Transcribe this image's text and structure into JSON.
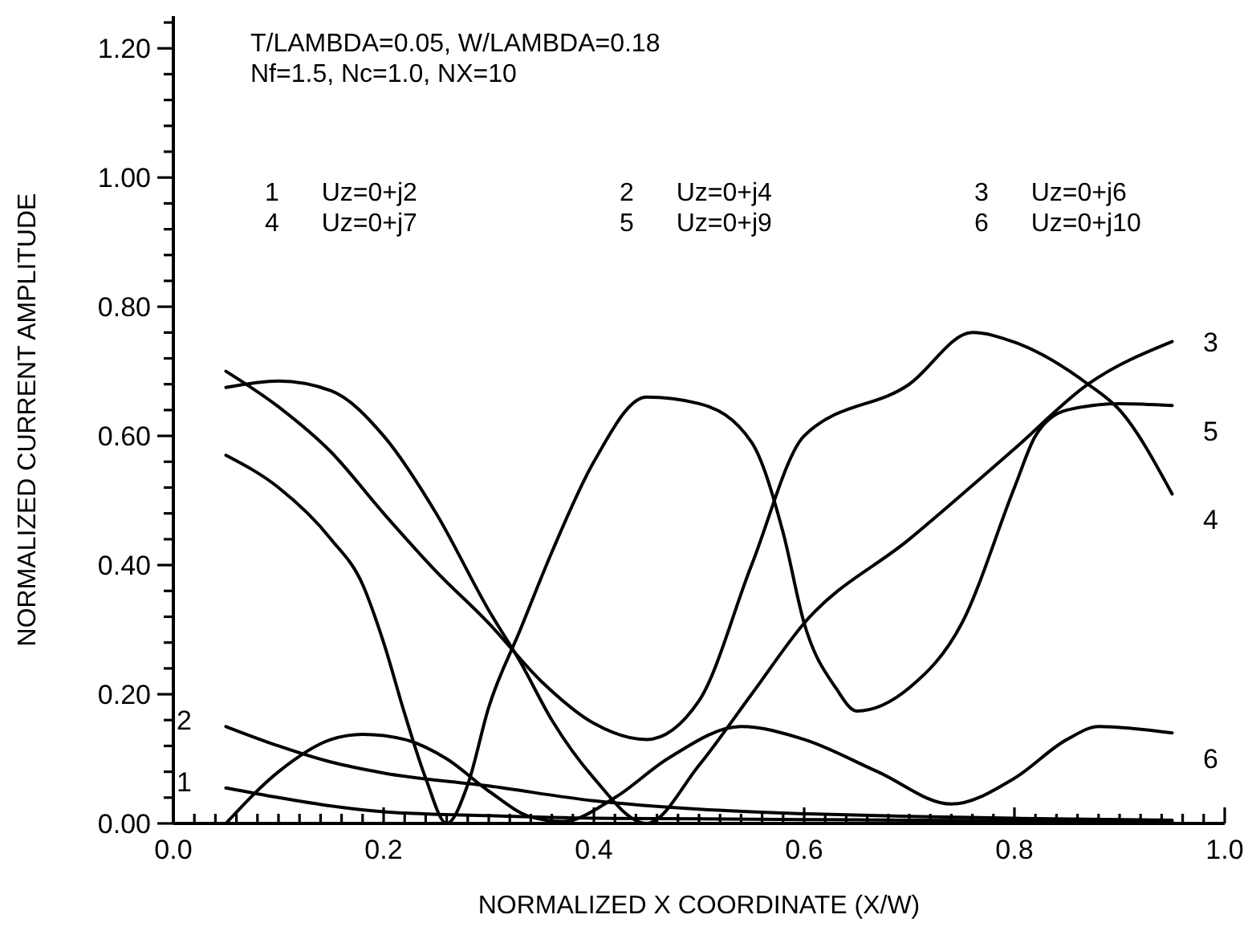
{
  "chart_data": {
    "type": "line",
    "xlabel": "NORMALIZED X COORDINATE (X/W)",
    "ylabel": "NORMALIZED CURRENT AMPLITUDE",
    "xlim": [
      0,
      1
    ],
    "ylim": [
      0,
      1.25
    ],
    "xticks": [
      {
        "value": 0,
        "label": "0.0"
      },
      {
        "value": 0.02,
        "label": null
      },
      {
        "value": 0.04,
        "label": null
      },
      {
        "value": 0.06,
        "label": null
      },
      {
        "value": 0.08,
        "label": null
      },
      {
        "value": 0.1,
        "label": null
      },
      {
        "value": 0.12,
        "label": null
      },
      {
        "value": 0.14,
        "label": null
      },
      {
        "value": 0.16,
        "label": null
      },
      {
        "value": 0.18,
        "label": null
      },
      {
        "value": 0.2,
        "label": "0.2"
      },
      {
        "value": 0.22,
        "label": null
      },
      {
        "value": 0.24,
        "label": null
      },
      {
        "value": 0.26,
        "label": null
      },
      {
        "value": 0.28,
        "label": null
      },
      {
        "value": 0.3,
        "label": null
      },
      {
        "value": 0.32,
        "label": null
      },
      {
        "value": 0.34,
        "label": null
      },
      {
        "value": 0.36,
        "label": null
      },
      {
        "value": 0.38,
        "label": null
      },
      {
        "value": 0.4,
        "label": "0.4"
      },
      {
        "value": 0.42,
        "label": null
      },
      {
        "value": 0.44,
        "label": null
      },
      {
        "value": 0.46,
        "label": null
      },
      {
        "value": 0.48,
        "label": null
      },
      {
        "value": 0.5,
        "label": null
      },
      {
        "value": 0.52,
        "label": null
      },
      {
        "value": 0.54,
        "label": null
      },
      {
        "value": 0.56,
        "label": null
      },
      {
        "value": 0.58,
        "label": null
      },
      {
        "value": 0.6,
        "label": "0.6"
      },
      {
        "value": 0.62,
        "label": null
      },
      {
        "value": 0.64,
        "label": null
      },
      {
        "value": 0.66,
        "label": null
      },
      {
        "value": 0.68,
        "label": null
      },
      {
        "value": 0.7,
        "label": null
      },
      {
        "value": 0.72,
        "label": null
      },
      {
        "value": 0.74,
        "label": null
      },
      {
        "value": 0.76,
        "label": null
      },
      {
        "value": 0.78,
        "label": null
      },
      {
        "value": 0.8,
        "label": "0.8"
      },
      {
        "value": 0.82,
        "label": null
      },
      {
        "value": 0.84,
        "label": null
      },
      {
        "value": 0.86,
        "label": null
      },
      {
        "value": 0.88,
        "label": null
      },
      {
        "value": 0.9,
        "label": null
      },
      {
        "value": 0.92,
        "label": null
      },
      {
        "value": 0.94,
        "label": null
      },
      {
        "value": 0.96,
        "label": null
      },
      {
        "value": 0.98,
        "label": null
      },
      {
        "value": 1,
        "label": "1.0"
      }
    ],
    "yticks": [
      {
        "value": 0,
        "label": "0.00"
      },
      {
        "value": 0.04,
        "label": null
      },
      {
        "value": 0.08,
        "label": null
      },
      {
        "value": 0.12,
        "label": null
      },
      {
        "value": 0.16,
        "label": null
      },
      {
        "value": 0.2,
        "label": "0.20"
      },
      {
        "value": 0.24,
        "label": null
      },
      {
        "value": 0.28,
        "label": null
      },
      {
        "value": 0.32,
        "label": null
      },
      {
        "value": 0.36,
        "label": null
      },
      {
        "value": 0.4,
        "label": "0.40"
      },
      {
        "value": 0.44,
        "label": null
      },
      {
        "value": 0.48,
        "label": null
      },
      {
        "value": 0.52,
        "label": null
      },
      {
        "value": 0.56,
        "label": null
      },
      {
        "value": 0.6,
        "label": "0.60"
      },
      {
        "value": 0.64,
        "label": null
      },
      {
        "value": 0.68,
        "label": null
      },
      {
        "value": 0.72,
        "label": null
      },
      {
        "value": 0.76,
        "label": null
      },
      {
        "value": 0.8,
        "label": "0.80"
      },
      {
        "value": 0.84,
        "label": null
      },
      {
        "value": 0.88,
        "label": null
      },
      {
        "value": 0.92,
        "label": null
      },
      {
        "value": 0.96,
        "label": null
      },
      {
        "value": 1,
        "label": "1.00"
      },
      {
        "value": 1.04,
        "label": null
      },
      {
        "value": 1.08,
        "label": null
      },
      {
        "value": 1.12,
        "label": null
      },
      {
        "value": 1.16,
        "label": null
      },
      {
        "value": 1.2,
        "label": "1.20"
      },
      {
        "value": 1.24,
        "label": null
      }
    ],
    "series": [
      {
        "name": "1 Uz=0+j2",
        "color": "#000000",
        "x": [
          0.05,
          0.1,
          0.15,
          0.2,
          0.3,
          0.4,
          0.5,
          0.6,
          0.7,
          0.8,
          0.95
        ],
        "values": [
          0.055,
          0.04,
          0.027,
          0.018,
          0.012,
          0.008,
          0.007,
          0.006,
          0.005,
          0.004,
          0.003
        ]
      },
      {
        "name": "2 Uz=0+j4",
        "color": "#000000",
        "x": [
          0.05,
          0.1,
          0.15,
          0.2,
          0.3,
          0.4,
          0.5,
          0.6,
          0.7,
          0.8,
          0.95
        ],
        "values": [
          0.15,
          0.12,
          0.095,
          0.078,
          0.058,
          0.035,
          0.022,
          0.015,
          0.011,
          0.008,
          0.005
        ]
      },
      {
        "name": "3 Uz=0+j6",
        "color": "#000000",
        "x": [
          0.05,
          0.1,
          0.15,
          0.2,
          0.25,
          0.3,
          0.33,
          0.36,
          0.4,
          0.45,
          0.5,
          0.55,
          0.6,
          0.7,
          0.8,
          0.87,
          0.95
        ],
        "values": [
          0.675,
          0.685,
          0.67,
          0.6,
          0.48,
          0.33,
          0.25,
          0.16,
          0.07,
          0.0,
          0.09,
          0.2,
          0.31,
          0.44,
          0.58,
          0.68,
          0.746
        ]
      },
      {
        "name": "4 Uz=0+j7",
        "color": "#000000",
        "x": [
          0.05,
          0.1,
          0.15,
          0.2,
          0.25,
          0.3,
          0.35,
          0.4,
          0.45,
          0.5,
          0.55,
          0.6,
          0.7,
          0.76,
          0.8,
          0.87,
          0.9,
          0.95
        ],
        "values": [
          0.7,
          0.645,
          0.575,
          0.48,
          0.39,
          0.31,
          0.22,
          0.155,
          0.13,
          0.19,
          0.4,
          0.6,
          0.68,
          0.76,
          0.745,
          0.68,
          0.64,
          0.51
        ]
      },
      {
        "name": "5 Uz=0+j9",
        "color": "#000000",
        "x": [
          0.05,
          0.1,
          0.15,
          0.18,
          0.2,
          0.22,
          0.24,
          0.26,
          0.28,
          0.3,
          0.33,
          0.36,
          0.4,
          0.45,
          0.5,
          0.55,
          0.58,
          0.6,
          0.63,
          0.65,
          0.7,
          0.75,
          0.8,
          0.82,
          0.85,
          0.9,
          0.95
        ],
        "values": [
          0.57,
          0.52,
          0.44,
          0.37,
          0.28,
          0.17,
          0.07,
          0.0,
          0.06,
          0.18,
          0.3,
          0.42,
          0.56,
          0.66,
          0.65,
          0.59,
          0.45,
          0.31,
          0.21,
          0.174,
          0.21,
          0.31,
          0.52,
          0.6,
          0.64,
          0.65,
          0.647
        ]
      },
      {
        "name": "6 Uz=0+j10",
        "color": "#000000",
        "x": [
          0.05,
          0.1,
          0.15,
          0.18,
          0.22,
          0.26,
          0.3,
          0.34,
          0.37,
          0.42,
          0.47,
          0.54,
          0.6,
          0.67,
          0.74,
          0.8,
          0.85,
          0.88,
          0.95
        ],
        "values": [
          0.0,
          0.08,
          0.13,
          0.138,
          0.13,
          0.1,
          0.05,
          0.01,
          0.003,
          0.04,
          0.1,
          0.15,
          0.13,
          0.08,
          0.03,
          0.07,
          0.13,
          0.15,
          0.14
        ]
      }
    ],
    "annotations": [
      "T/LAMBDA=0.05, W/LAMBDA=0.18",
      "Nf=1.5, Nc=1.0, NX=10",
      "1",
      "2",
      "3",
      "4",
      "5",
      "6"
    ]
  }
}
